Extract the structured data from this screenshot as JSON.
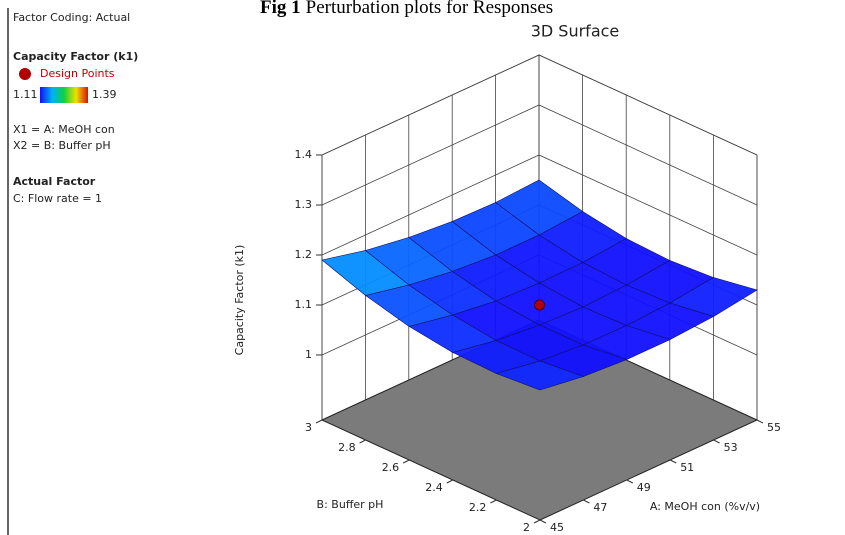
{
  "caption": {
    "label": "Fig 1",
    "text": "Perturbation plots for Responses"
  },
  "sidebar": {
    "coding": "Factor Coding: Actual",
    "response": "Capacity Factor (k1)",
    "points_label": "Design Points",
    "factors": [
      "X1 = A: MeOH con",
      "X2 = B: Buffer pH"
    ],
    "actual_title": "Actual Factor",
    "actual_factors": [
      "C: Flow rate = 1"
    ]
  },
  "chart_data": {
    "type": "surface3d",
    "title": "3D Surface",
    "xlabel": "A: MeOH con (%v/v)",
    "ylabel": "B: Buffer pH",
    "zlabel": "Capacity Factor (k1)",
    "x": [
      45,
      47,
      49,
      51,
      53,
      55
    ],
    "y": [
      2,
      2.2,
      2.4,
      2.6,
      2.8,
      3
    ],
    "z": [
      [
        1.13,
        1.117,
        1.111,
        1.111,
        1.117,
        1.13
      ],
      [
        1.123,
        1.108,
        1.1,
        1.099,
        1.104,
        1.115
      ],
      [
        1.125,
        1.109,
        1.1,
        1.096,
        1.1,
        1.109
      ],
      [
        1.137,
        1.12,
        1.108,
        1.104,
        1.105,
        1.113
      ],
      [
        1.159,
        1.14,
        1.127,
        1.12,
        1.12,
        1.127
      ],
      [
        1.19,
        1.169,
        1.155,
        1.147,
        1.145,
        1.15
      ]
    ],
    "xlim": [
      45,
      55
    ],
    "ylim": [
      2,
      3
    ],
    "zlim": [
      0.87,
      1.4
    ],
    "xticks": [
      45,
      47,
      49,
      51,
      53,
      55
    ],
    "yticks": [
      2,
      2.2,
      2.4,
      2.6,
      2.8,
      3
    ],
    "zticks": [
      1,
      1.1,
      1.2,
      1.3,
      1.4
    ],
    "colorscale": {
      "min": 1.11,
      "max": 1.39,
      "colors": [
        "#1010ff",
        "#00b0ff",
        "#10d040",
        "#f0e000",
        "#e01000"
      ]
    },
    "points": {
      "name": "Design Points",
      "color": "#b00000",
      "x": [
        50
      ],
      "y": [
        2.5
      ],
      "z": [
        1.1
      ]
    },
    "grid": true,
    "floor_color": "#7b7b7b",
    "mesh_color": "#10106a"
  }
}
